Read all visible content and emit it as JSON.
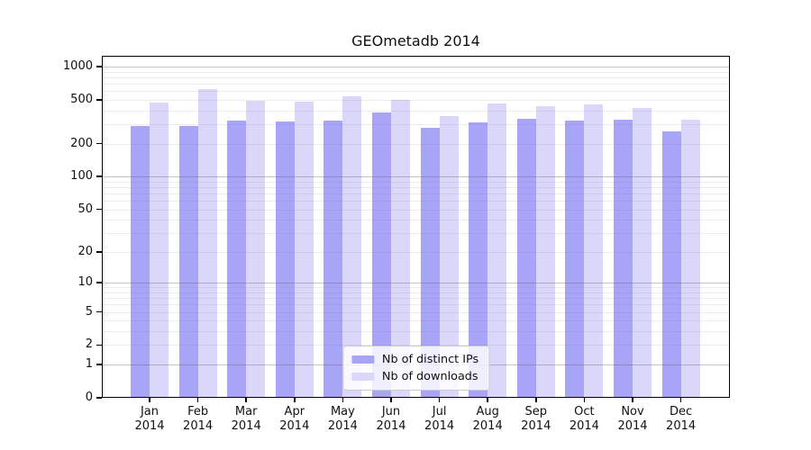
{
  "chart_data": {
    "type": "bar",
    "title": "GEOmetadb 2014",
    "months": [
      "Jan",
      "Feb",
      "Mar",
      "Apr",
      "May",
      "Jun",
      "Jul",
      "Aug",
      "Sep",
      "Oct",
      "Nov",
      "Dec"
    ],
    "year": "2014",
    "series": [
      {
        "name": "Nb of distinct IPs",
        "color": "#a8a4f8",
        "values": [
          290,
          288,
          323,
          318,
          325,
          386,
          276,
          312,
          337,
          324,
          330,
          259
        ]
      },
      {
        "name": "Nb of downloads",
        "color": "#dad7fa",
        "values": [
          472,
          629,
          485,
          481,
          536,
          503,
          354,
          463,
          438,
          455,
          421,
          330
        ]
      }
    ],
    "xlabel": "",
    "ylabel": "",
    "y_scale": "log10(1+y)",
    "y_ticks": [
      1000,
      500,
      200,
      100,
      50,
      20,
      10,
      5,
      2,
      1,
      0
    ],
    "ylim": [
      0,
      1260
    ],
    "grid": {
      "on": true,
      "drawn_above_bars": true,
      "major_values": [
        1,
        10,
        100,
        1000
      ],
      "minor_values": [
        2,
        3,
        4,
        5,
        6,
        7,
        8,
        9,
        20,
        30,
        40,
        50,
        60,
        70,
        80,
        90,
        200,
        300,
        400,
        500,
        600,
        700,
        800,
        900
      ],
      "major_color": "rgba(100,100,100,0.38)",
      "minor_color": "rgba(120,120,120,0.14)"
    },
    "legend_position": "lower center",
    "axis_color": "#000000",
    "background_color": "#ffffff"
  }
}
